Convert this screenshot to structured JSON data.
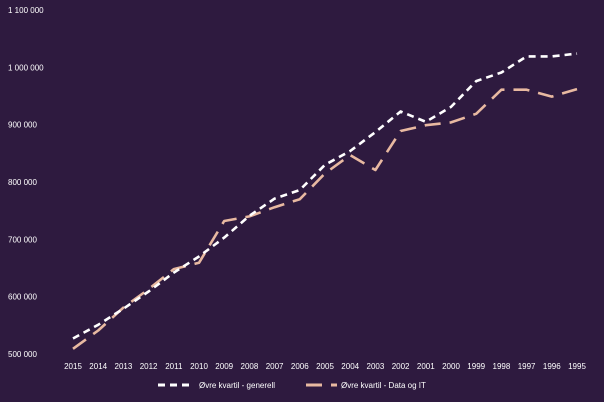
{
  "chart_data": {
    "type": "line",
    "title": "",
    "xlabel": "",
    "ylabel": "",
    "categories": [
      "2015",
      "2014",
      "2013",
      "2012",
      "2011",
      "2010",
      "2009",
      "2008",
      "2007",
      "2006",
      "2005",
      "2004",
      "2003",
      "2002",
      "2001",
      "2000",
      "1999",
      "1998",
      "1997",
      "1996",
      "1995"
    ],
    "ylim": [
      500000,
      1100000
    ],
    "yticks": [
      500000,
      600000,
      700000,
      800000,
      900000,
      1000000,
      1100000
    ],
    "ytick_labels": [
      "500 000",
      "600 000",
      "700 000",
      "800 000",
      "900 000",
      "1 000 000",
      "1 100 000"
    ],
    "grid": false,
    "legend_position": "bottom",
    "series": [
      {
        "name": "Øvre kvartil - generell",
        "color": "#ffffff",
        "style": "dashed",
        "values": [
          527000,
          551000,
          579000,
          609000,
          642000,
          670000,
          703000,
          741000,
          771000,
          786000,
          830000,
          854000,
          887000,
          923000,
          905000,
          931000,
          976000,
          991000,
          1019000,
          1019000,
          1024000
        ]
      },
      {
        "name": "Øvre kvartil - Data og IT",
        "color": "#e8b9a1",
        "style": "long-dashed",
        "values": [
          509000,
          541000,
          581000,
          613000,
          648000,
          659000,
          732000,
          740000,
          756000,
          770000,
          815000,
          847000,
          821000,
          889000,
          899000,
          904000,
          919000,
          961000,
          961000,
          949000,
          962000
        ]
      }
    ]
  }
}
